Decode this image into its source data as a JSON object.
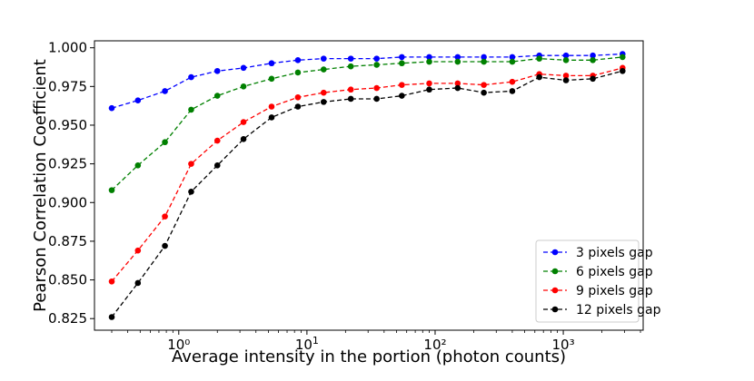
{
  "chart_data": {
    "type": "line",
    "title": "",
    "xlabel": "Average intensity in the portion (photon counts)",
    "ylabel": "Pearson Correlation Coefficient",
    "x_scale": "log",
    "xlim": [
      0.22,
      4200
    ],
    "ylim": [
      0.8175,
      1.0045
    ],
    "x_ticks": [
      {
        "value": 1,
        "label": "10⁰"
      },
      {
        "value": 100,
        "label": "10²"
      },
      {
        "value": 1000,
        "label": "10³"
      }
    ],
    "x_tick_10_label": {
      "value": 10,
      "base": "10",
      "exp": "1"
    },
    "y_ticks": [
      {
        "value": 0.825,
        "label": "0.825"
      },
      {
        "value": 0.85,
        "label": "0.850"
      },
      {
        "value": 0.875,
        "label": "0.875"
      },
      {
        "value": 0.9,
        "label": "0.900"
      },
      {
        "value": 0.925,
        "label": "0.925"
      },
      {
        "value": 0.95,
        "label": "0.950"
      },
      {
        "value": 0.975,
        "label": "0.975"
      },
      {
        "value": 1.0,
        "label": "1.000"
      }
    ],
    "grid": false,
    "legend_position": "lower-right",
    "x": [
      0.3,
      0.48,
      0.78,
      1.25,
      2.0,
      3.2,
      5.3,
      8.5,
      13.5,
      22,
      35,
      55,
      90,
      150,
      240,
      400,
      650,
      1050,
      1700,
      2900
    ],
    "series": [
      {
        "name": "3 pixels gap",
        "color": "#0000ff",
        "values": [
          0.961,
          0.966,
          0.972,
          0.981,
          0.985,
          0.987,
          0.99,
          0.992,
          0.993,
          0.993,
          0.993,
          0.994,
          0.994,
          0.994,
          0.994,
          0.994,
          0.995,
          0.995,
          0.995,
          0.996
        ]
      },
      {
        "name": "6 pixels gap",
        "color": "#008000",
        "values": [
          0.908,
          0.924,
          0.939,
          0.96,
          0.969,
          0.975,
          0.98,
          0.984,
          0.986,
          0.988,
          0.989,
          0.99,
          0.991,
          0.991,
          0.991,
          0.991,
          0.993,
          0.992,
          0.992,
          0.994
        ]
      },
      {
        "name": "9 pixels gap",
        "color": "#ff0000",
        "values": [
          0.849,
          0.869,
          0.891,
          0.925,
          0.94,
          0.952,
          0.962,
          0.968,
          0.971,
          0.973,
          0.974,
          0.976,
          0.977,
          0.977,
          0.976,
          0.978,
          0.983,
          0.982,
          0.982,
          0.987
        ]
      },
      {
        "name": "12 pixels gap",
        "color": "#000000",
        "values": [
          0.826,
          0.848,
          0.872,
          0.907,
          0.924,
          0.941,
          0.955,
          0.962,
          0.965,
          0.967,
          0.967,
          0.969,
          0.973,
          0.974,
          0.971,
          0.972,
          0.981,
          0.979,
          0.98,
          0.985
        ]
      }
    ]
  }
}
